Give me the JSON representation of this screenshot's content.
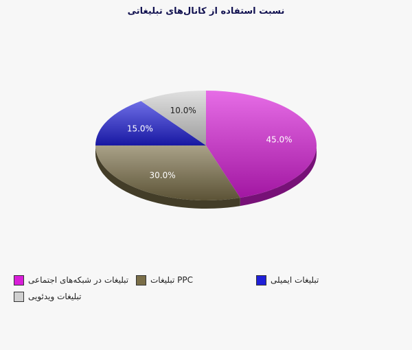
{
  "chart_data": {
    "type": "pie",
    "title": "نسبت استفاده از کانال‌های تبلیغاتی",
    "slices": [
      {
        "name": "تبلیغات در شبکه‌های اجتماعی",
        "value": 45.0,
        "label": "45.0%",
        "color": "#d81ed8"
      },
      {
        "name": "تبلیغات PPC",
        "value": 30.0,
        "label": "30.0%",
        "color": "#7a6e48"
      },
      {
        "name": "تبلیغات ایمیلی",
        "value": 15.0,
        "label": "15.0%",
        "color": "#2020d8"
      },
      {
        "name": "تبلیغات ویدئویی",
        "value": 10.0,
        "label": "10.0%",
        "color": "#d0d0d0"
      }
    ],
    "legend_position": "bottom"
  }
}
